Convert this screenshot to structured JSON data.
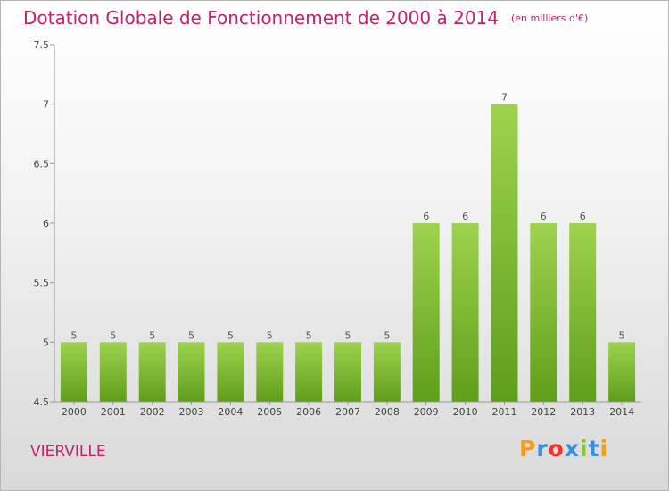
{
  "chart_data": {
    "type": "bar",
    "title": "Dotation Globale de Fonctionnement de 2000 à 2014",
    "unit": "(en milliers d'€)",
    "categories": [
      "2000",
      "2001",
      "2002",
      "2003",
      "2004",
      "2005",
      "2006",
      "2007",
      "2008",
      "2009",
      "2010",
      "2011",
      "2012",
      "2013",
      "2014"
    ],
    "values": [
      5,
      5,
      5,
      5,
      5,
      5,
      5,
      5,
      5,
      6,
      6,
      7,
      6,
      6,
      5
    ],
    "ylim": [
      4.5,
      7.5
    ],
    "yticks": [
      "4.5",
      "5",
      "5.5",
      "6",
      "6.5",
      "7",
      "7.5"
    ],
    "grid": false,
    "bar_color": "#8cc63f"
  },
  "footer": {
    "commune": "VIERVILLE",
    "logo": [
      "P",
      "r",
      "o",
      "x",
      "i",
      "t",
      "i"
    ],
    "logo_colors": [
      "#f59c1a",
      "#3a8fd9",
      "#e8382e",
      "#3a8fd9",
      "#8cc63f",
      "#3a8fd9",
      "#f59c1a"
    ]
  }
}
